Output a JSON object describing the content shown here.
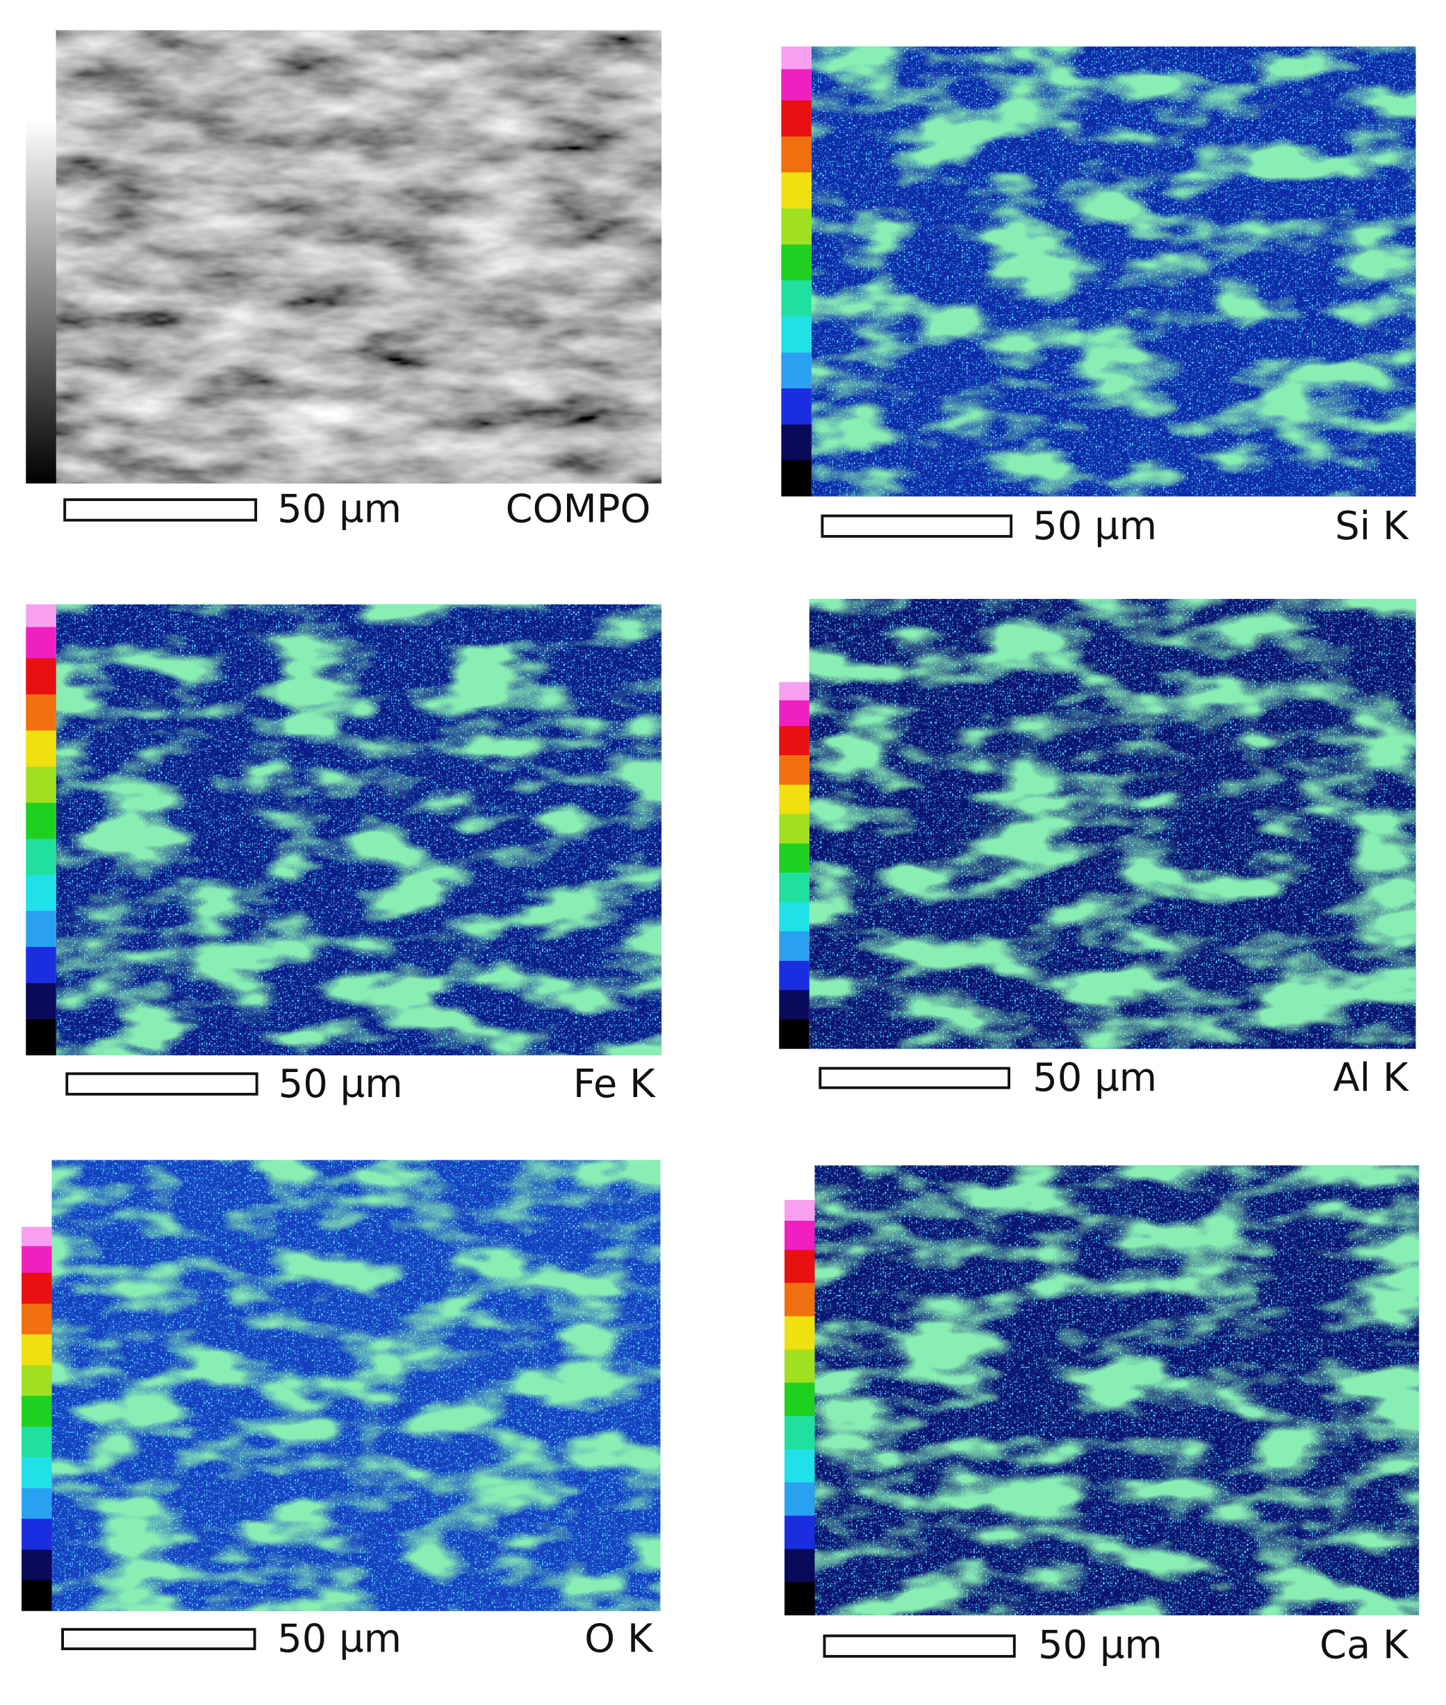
{
  "panels": [
    {
      "scale": "50 µm",
      "label": "COMPO"
    },
    {
      "scale": "50 µm",
      "label": "Si K"
    },
    {
      "scale": "50 µm",
      "label": "Fe K"
    },
    {
      "scale": "50 µm",
      "label": "Al K"
    },
    {
      "scale": "50 µm",
      "label": "O K"
    },
    {
      "scale": "50 µm",
      "label": "Ca K"
    }
  ]
}
